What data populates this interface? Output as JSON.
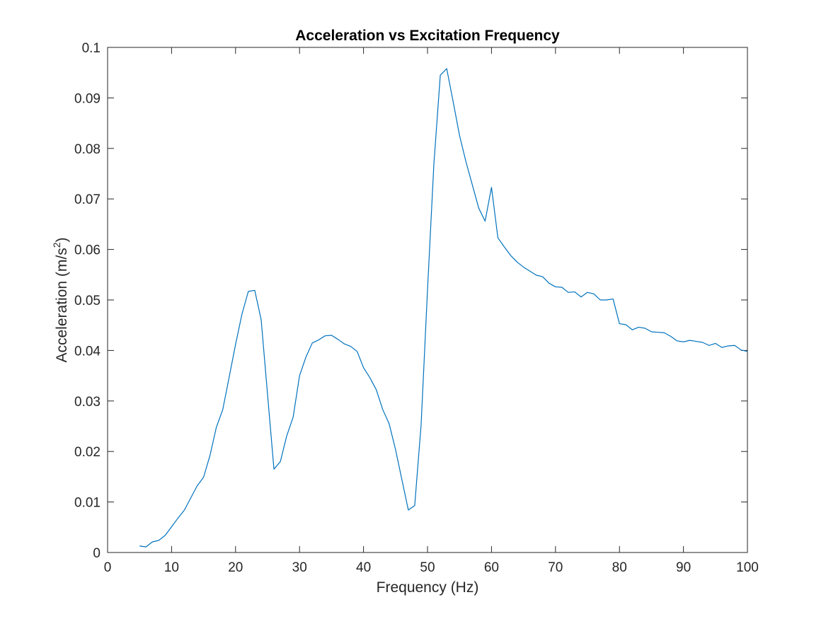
{
  "chart_data": {
    "type": "line",
    "title": "Acceleration vs Excitation Frequency",
    "xlabel": "Frequency (Hz)",
    "ylabel": {
      "text": "Acceleration (m/s",
      "superscript": "2",
      "suffix": ")"
    },
    "xlim": [
      0,
      100
    ],
    "ylim": [
      0,
      0.1
    ],
    "xticks": [
      0,
      10,
      20,
      30,
      40,
      50,
      60,
      70,
      80,
      90,
      100
    ],
    "yticks": [
      0,
      0.01,
      0.02,
      0.03,
      0.04,
      0.05,
      0.06,
      0.07,
      0.08,
      0.09,
      0.1
    ],
    "xtick_labels": [
      "0",
      "10",
      "20",
      "30",
      "40",
      "50",
      "60",
      "70",
      "80",
      "90",
      "100"
    ],
    "ytick_labels": [
      "0",
      "0.01",
      "0.02",
      "0.03",
      "0.04",
      "0.05",
      "0.06",
      "0.07",
      "0.08",
      "0.09",
      "0.1"
    ],
    "grid": false,
    "line_color": "#0072BD",
    "series": [
      {
        "x": [
          5,
          6,
          7,
          8,
          9,
          10,
          11,
          12,
          13,
          14,
          15,
          16,
          17,
          18,
          19,
          20,
          21,
          22,
          23,
          24,
          25,
          26,
          27,
          28,
          29,
          30,
          31,
          32,
          33,
          34,
          35,
          36,
          37,
          38,
          39,
          40,
          41,
          42,
          43,
          44,
          45,
          46,
          47,
          48,
          49,
          50,
          51,
          52,
          53,
          54,
          55,
          56,
          57,
          58,
          59,
          60,
          61,
          62,
          63,
          64,
          65,
          66,
          67,
          68,
          69,
          70,
          71,
          72,
          73,
          74,
          75,
          76,
          77,
          78,
          79,
          80,
          81,
          82,
          83,
          84,
          85,
          86,
          87,
          88,
          89,
          90,
          91,
          92,
          93,
          94,
          95,
          96,
          97,
          98,
          99,
          100
        ],
        "y": [
          0.0013,
          0.0011,
          0.0021,
          0.0024,
          0.0034,
          0.0051,
          0.0068,
          0.0084,
          0.0108,
          0.0132,
          0.0149,
          0.0192,
          0.0248,
          0.0283,
          0.0347,
          0.0412,
          0.0472,
          0.0517,
          0.0519,
          0.0461,
          0.0313,
          0.0165,
          0.018,
          0.0231,
          0.0268,
          0.035,
          0.0387,
          0.0415,
          0.0421,
          0.0429,
          0.043,
          0.0422,
          0.0413,
          0.0408,
          0.0398,
          0.0366,
          0.0346,
          0.0322,
          0.0283,
          0.0255,
          0.0204,
          0.0144,
          0.0084,
          0.0093,
          0.0253,
          0.052,
          0.077,
          0.0945,
          0.0958,
          0.0893,
          0.0826,
          0.0774,
          0.0728,
          0.0682,
          0.0656,
          0.0723,
          0.0623,
          0.0605,
          0.0588,
          0.0575,
          0.0565,
          0.0557,
          0.0549,
          0.0546,
          0.0533,
          0.0526,
          0.0525,
          0.0515,
          0.0516,
          0.0506,
          0.0515,
          0.0512,
          0.05,
          0.05,
          0.0502,
          0.0453,
          0.0451,
          0.0441,
          0.0446,
          0.0444,
          0.0437,
          0.0436,
          0.0435,
          0.0428,
          0.0419,
          0.0417,
          0.042,
          0.0418,
          0.0416,
          0.041,
          0.0414,
          0.0406,
          0.0409,
          0.041,
          0.0401,
          0.0398
        ]
      }
    ]
  }
}
